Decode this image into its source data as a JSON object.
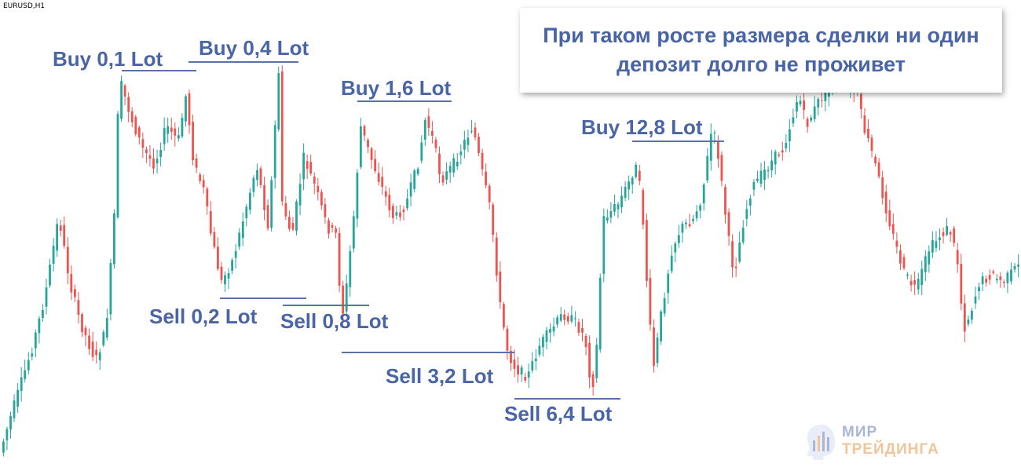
{
  "symbol": "EURUSD,H1",
  "callout": "При таком росте размера сделки ни один депозит долго не проживет",
  "logo": {
    "line1": "МИР",
    "line2": "ТРЕЙДИНГА"
  },
  "colors": {
    "bull": "#26a69a",
    "bear": "#ef5350",
    "label": "#4a65a6",
    "level": "#5b6fa8"
  },
  "chart_data": {
    "type": "candlestick",
    "levels": [
      {
        "label": "Buy 0,1 Lot"
      },
      {
        "label": "Buy 0,4 Lot"
      },
      {
        "label": "Sell 0,2 Lot"
      },
      {
        "label": "Sell 0,8 Lot"
      },
      {
        "label": "Buy 1,6 Lot"
      },
      {
        "label": "Sell 3,2 Lot"
      },
      {
        "label": "Sell 6,4 Lot"
      },
      {
        "label": "Buy 12,8 Lot"
      }
    ]
  }
}
